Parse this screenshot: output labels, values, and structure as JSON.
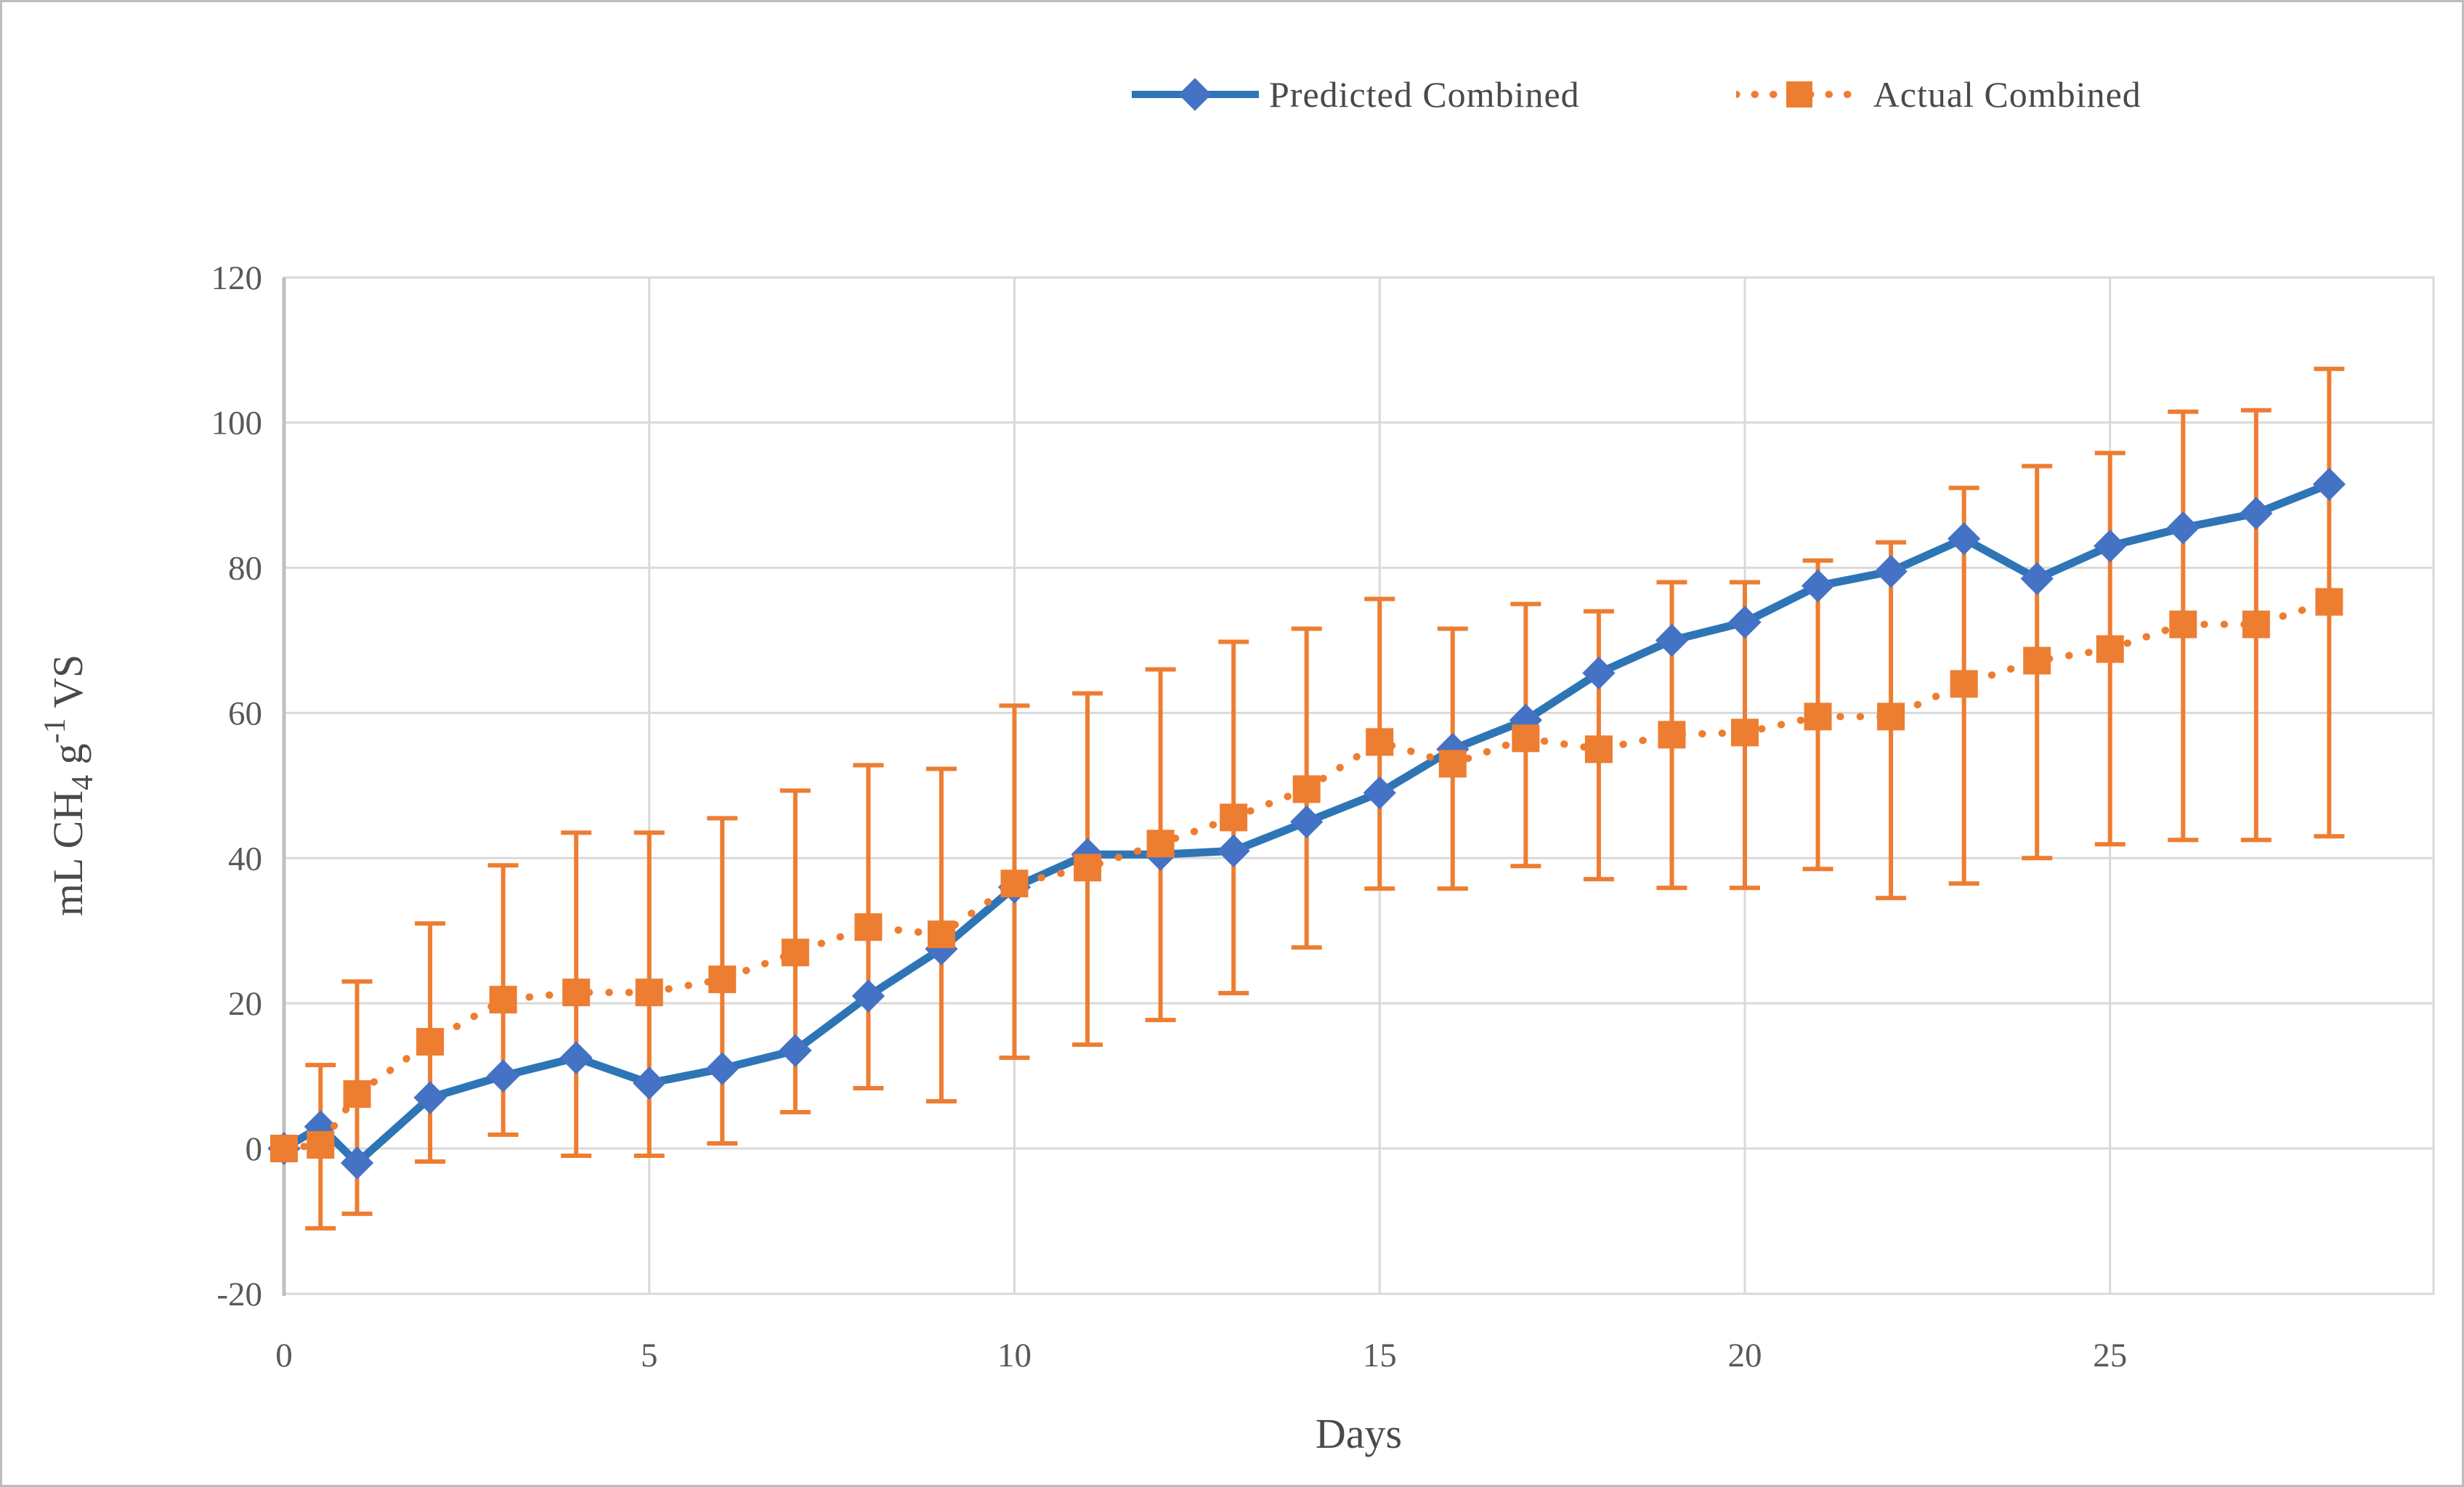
{
  "figure": {
    "background_color": "#FFFFFF",
    "border_color": "#BDBDBD"
  },
  "styles": {
    "grid_color": "#D9D9D9",
    "axis_line_color": "#BFBFBF",
    "tick_text_color": "#595959",
    "title_text_color": "#4a4a4a",
    "predicted_line_color": "#2E75B6",
    "predicted_marker_color": "#4472C4",
    "actual_color": "#ED7D31"
  },
  "legend": [
    {
      "label": "Predicted Combined",
      "marker": "diamond",
      "line_style": "solid",
      "color": "#2E75B6",
      "marker_color": "#4472C4"
    },
    {
      "label": "Actual Combined",
      "marker": "square",
      "line_style": "dotted",
      "color": "#ED7D31",
      "marker_color": "#ED7D31"
    }
  ],
  "chart_data": {
    "type": "line",
    "title": "",
    "xlabel": "Days",
    "ylabel": "mL CH4 g-1 VS",
    "ylabel_parts": [
      {
        "text": "mL CH"
      },
      {
        "text": "4",
        "script": "sub"
      },
      {
        "text": " g"
      },
      {
        "text": "-1",
        "script": "sup"
      },
      {
        "text": " VS"
      }
    ],
    "xlim": [
      0,
      29.4
    ],
    "ylim": [
      -20,
      120
    ],
    "xticks": [
      0,
      5,
      10,
      15,
      20,
      25
    ],
    "yticks": [
      -20,
      0,
      20,
      40,
      60,
      80,
      100,
      120
    ],
    "grid": true,
    "legend_position": "top",
    "x": [
      0,
      0.5,
      1,
      2,
      3,
      4,
      5,
      6,
      7,
      8,
      9,
      10,
      11,
      12,
      13,
      14,
      15,
      16,
      17,
      18,
      19,
      20,
      21,
      22,
      23,
      24,
      25,
      26,
      27,
      28
    ],
    "series": [
      {
        "name": "Predicted Combined",
        "marker": "diamond",
        "line_style": "solid",
        "values": [
          0,
          3,
          -2,
          7,
          10,
          12.5,
          9,
          11,
          13.5,
          21,
          27.5,
          36,
          40.5,
          40.5,
          41,
          45,
          49,
          55,
          59,
          65.5,
          70,
          72.5,
          77.5,
          79.5,
          84,
          78.5,
          83,
          85.5,
          87.5,
          91.5
        ]
      },
      {
        "name": "Actual Combined",
        "marker": "square",
        "line_style": "dotted",
        "values": [
          0,
          0.5,
          7.5,
          14.7,
          20.5,
          21.5,
          21.5,
          23.3,
          27,
          30.5,
          29.5,
          36.5,
          38.7,
          42,
          45.6,
          49.5,
          56,
          53,
          56.5,
          55,
          57,
          57.3,
          59.5,
          59.5,
          64,
          67.2,
          68.8,
          72.2,
          72.2,
          75.3
        ],
        "error_low": [
          null,
          -11,
          -9,
          -1.8,
          1.9,
          -1,
          -1,
          0.7,
          5,
          8.3,
          6.5,
          12.5,
          14.3,
          17.7,
          21.4,
          27.7,
          35.8,
          35.8,
          38.9,
          37.1,
          35.9,
          35.9,
          38.5,
          34.5,
          36.5,
          40,
          41.9,
          42.5,
          42.5,
          43
        ],
        "error_high": [
          null,
          11.5,
          23,
          31,
          39,
          43.5,
          43.5,
          45.5,
          49.3,
          52.8,
          52.3,
          61,
          62.7,
          66,
          69.8,
          71.6,
          75.7,
          71.6,
          75,
          74,
          78,
          78,
          81,
          83.5,
          91,
          94,
          95.8,
          101.5,
          101.7,
          107.4
        ]
      }
    ]
  }
}
